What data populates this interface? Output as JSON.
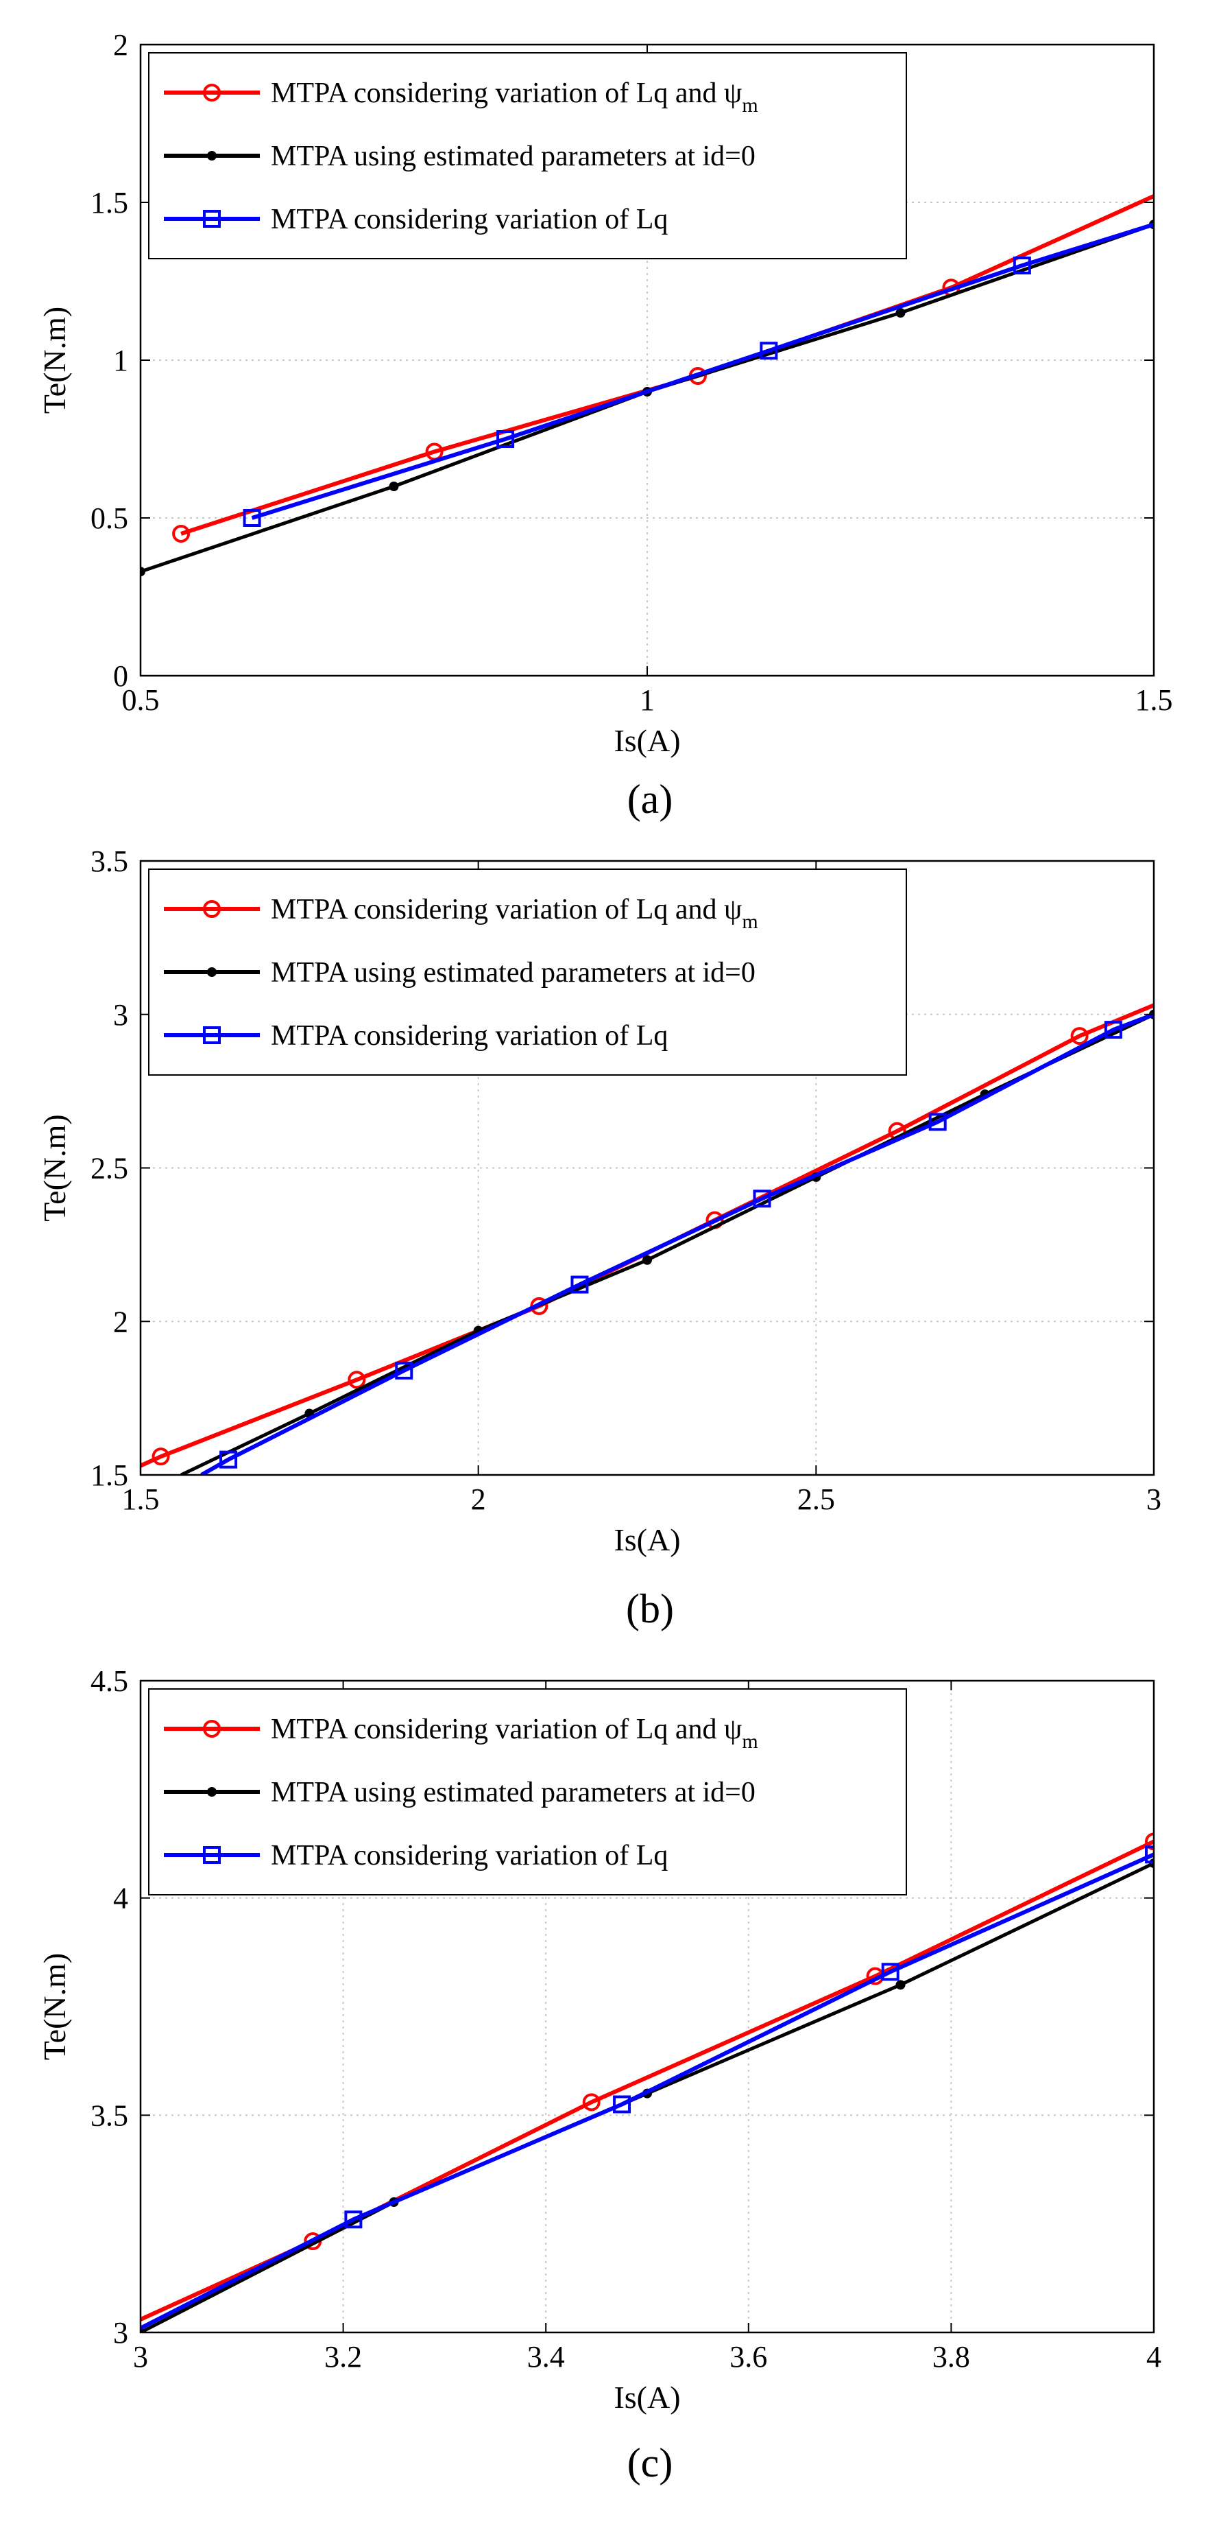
{
  "chart_data": [
    {
      "type": "line",
      "caption": "(a)",
      "xlabel": "Is(A)",
      "ylabel": "Te(N.m)",
      "xlim": [
        0.5,
        1.5
      ],
      "ylim": [
        0,
        2
      ],
      "xticks": [
        0.5,
        1,
        1.5
      ],
      "xtick_labels": [
        "0.5",
        "1",
        "1.5"
      ],
      "yticks": [
        0,
        0.5,
        1,
        1.5,
        2
      ],
      "ytick_labels": [
        "0",
        "0.5",
        "1",
        "1.5",
        "2"
      ],
      "grid": true,
      "legend_position": "top-left",
      "series": [
        {
          "name": "MTPA considering variation of Lq and ψ",
          "name_subscript": "m",
          "color": "#ff0000",
          "marker": "circle",
          "x": [
            0.54,
            0.79,
            1.05,
            1.3,
            1.5
          ],
          "y": [
            0.45,
            0.71,
            0.95,
            1.23,
            1.52
          ],
          "marker_x": [
            0.54,
            0.79,
            1.05,
            1.3
          ],
          "marker_y": [
            0.45,
            0.71,
            0.95,
            1.23
          ]
        },
        {
          "name": "MTPA using estimated parameters at id=0",
          "color": "#000000",
          "marker": "dot",
          "x": [
            0.5,
            0.75,
            1.0,
            1.25,
            1.5
          ],
          "y": [
            0.33,
            0.6,
            0.9,
            1.15,
            1.43
          ],
          "marker_x": [
            0.5,
            0.75,
            1.0,
            1.25,
            1.5
          ],
          "marker_y": [
            0.33,
            0.6,
            0.9,
            1.15,
            1.43
          ]
        },
        {
          "name": "MTPA considering variation of Lq",
          "color": "#0000ff",
          "marker": "square",
          "x": [
            0.61,
            0.86,
            1.12,
            1.37,
            1.5
          ],
          "y": [
            0.5,
            0.75,
            1.03,
            1.3,
            1.43
          ],
          "marker_x": [
            0.61,
            0.86,
            1.12,
            1.37
          ],
          "marker_y": [
            0.5,
            0.75,
            1.03,
            1.3
          ]
        }
      ]
    },
    {
      "type": "line",
      "caption": "(b)",
      "xlabel": "Is(A)",
      "ylabel": "Te(N.m)",
      "xlim": [
        1.5,
        3
      ],
      "ylim": [
        1.5,
        3.5
      ],
      "xticks": [
        1.5,
        2,
        2.5,
        3
      ],
      "xtick_labels": [
        "1.5",
        "2",
        "2.5",
        "3"
      ],
      "yticks": [
        1.5,
        2,
        2.5,
        3,
        3.5
      ],
      "ytick_labels": [
        "1.5",
        "2",
        "2.5",
        "3",
        "3.5"
      ],
      "grid": true,
      "legend_position": "top-left",
      "series": [
        {
          "name": "MTPA considering variation of Lq and ψ",
          "name_subscript": "m",
          "color": "#ff0000",
          "marker": "circle",
          "x": [
            1.5,
            1.53,
            1.82,
            2.09,
            2.35,
            2.62,
            2.89,
            3.0
          ],
          "y": [
            1.53,
            1.56,
            1.81,
            2.05,
            2.33,
            2.62,
            2.93,
            3.03
          ],
          "marker_x": [
            1.53,
            1.82,
            2.09,
            2.35,
            2.62,
            2.89
          ],
          "marker_y": [
            1.56,
            1.81,
            2.05,
            2.33,
            2.62,
            2.93
          ]
        },
        {
          "name": "MTPA using estimated parameters at id=0",
          "color": "#000000",
          "marker": "dot",
          "x": [
            1.56,
            1.75,
            2.0,
            2.25,
            2.5,
            2.75,
            3.0
          ],
          "y": [
            1.5,
            1.7,
            1.97,
            2.2,
            2.47,
            2.74,
            3.0
          ],
          "marker_x": [
            1.75,
            2.0,
            2.25,
            2.5,
            2.75,
            3.0
          ],
          "marker_y": [
            1.7,
            1.97,
            2.2,
            2.47,
            2.74,
            3.0
          ]
        },
        {
          "name": "MTPA considering variation of Lq",
          "color": "#0000ff",
          "marker": "square",
          "x": [
            1.59,
            1.63,
            1.89,
            2.15,
            2.42,
            2.68,
            2.94,
            3.0
          ],
          "y": [
            1.5,
            1.55,
            1.84,
            2.12,
            2.4,
            2.65,
            2.95,
            3.0
          ],
          "marker_x": [
            1.63,
            1.89,
            2.15,
            2.42,
            2.68,
            2.94
          ],
          "marker_y": [
            1.55,
            1.84,
            2.12,
            2.4,
            2.65,
            2.95
          ]
        }
      ]
    },
    {
      "type": "line",
      "caption": "(c)",
      "xlabel": "Is(A)",
      "ylabel": "Te(N.m)",
      "xlim": [
        3,
        4
      ],
      "ylim": [
        3,
        4.5
      ],
      "xticks": [
        3,
        3.2,
        3.4,
        3.6,
        3.8,
        4
      ],
      "xtick_labels": [
        "3",
        "3.2",
        "3.4",
        "3.6",
        "3.8",
        "4"
      ],
      "yticks": [
        3,
        3.5,
        4,
        4.5
      ],
      "ytick_labels": [
        "3",
        "3.5",
        "4",
        "4.5"
      ],
      "grid": true,
      "legend_position": "top-left",
      "series": [
        {
          "name": "MTPA considering variation of Lq and ψ",
          "name_subscript": "m",
          "color": "#ff0000",
          "marker": "circle",
          "x": [
            3.0,
            3.17,
            3.445,
            3.725,
            4.0
          ],
          "y": [
            3.03,
            3.21,
            3.53,
            3.82,
            4.13
          ],
          "marker_x": [
            3.17,
            3.445,
            3.725,
            4.0
          ],
          "marker_y": [
            3.21,
            3.53,
            3.82,
            4.13
          ]
        },
        {
          "name": "MTPA using estimated parameters at id=0",
          "color": "#000000",
          "marker": "dot",
          "x": [
            3.0,
            3.25,
            3.5,
            3.75,
            4.0
          ],
          "y": [
            3.0,
            3.3,
            3.55,
            3.8,
            4.08
          ],
          "marker_x": [
            3.0,
            3.25,
            3.5,
            3.75,
            4.0
          ],
          "marker_y": [
            3.0,
            3.3,
            3.55,
            3.8,
            4.08
          ]
        },
        {
          "name": "MTPA considering variation of Lq",
          "color": "#0000ff",
          "marker": "square",
          "x": [
            3.0,
            3.21,
            3.475,
            3.74,
            4.0
          ],
          "y": [
            3.01,
            3.26,
            3.525,
            3.83,
            4.1
          ],
          "marker_x": [
            3.21,
            3.475,
            3.74,
            4.0
          ],
          "marker_y": [
            3.26,
            3.525,
            3.83,
            4.1
          ]
        }
      ]
    }
  ]
}
